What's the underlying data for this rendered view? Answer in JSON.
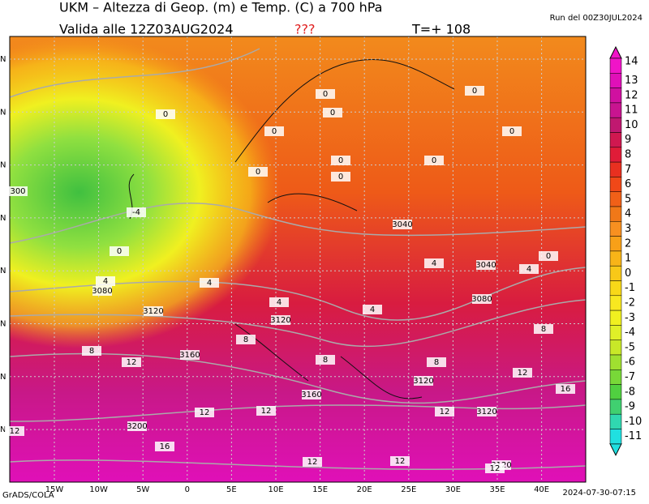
{
  "header": {
    "title": "UKM – Altezza di Geop. (m) e Temp. (C) a 700 hPa",
    "valid": "Valida alle 12Z03AUG2024",
    "flag": "???",
    "step": "T=+ 108",
    "run": "Run del 00Z30JUL2024"
  },
  "footer": {
    "left": "GrADS/COLA",
    "right": "2024-07-30-07:15"
  },
  "map": {
    "longitudes": [
      "15W",
      "10W",
      "5W",
      "0",
      "5E",
      "10E",
      "15E",
      "20E",
      "25E",
      "30E",
      "35E",
      "40E"
    ],
    "latitudes": [
      "N",
      "N",
      "N",
      "N",
      "N",
      "N",
      "N",
      "N"
    ],
    "contour_labels": [
      "0",
      "0",
      "0",
      "0",
      "0",
      "0",
      "0",
      "0",
      "0",
      "0",
      "0",
      "0",
      "300",
      "-4",
      "3040",
      "3040",
      "4",
      "4",
      "4",
      "4",
      "4",
      "4",
      "3080",
      "3080",
      "3120",
      "3120",
      "3120",
      "3120",
      "3120",
      "8",
      "8",
      "8",
      "8",
      "8",
      "3160",
      "3160",
      "12",
      "12",
      "12",
      "12",
      "12",
      "12",
      "12",
      "12",
      "12",
      "16",
      "16",
      "3200"
    ]
  },
  "colorbar": {
    "ticks": [
      14,
      13,
      12,
      11,
      10,
      9,
      8,
      7,
      6,
      5,
      4,
      3,
      2,
      1,
      0,
      -1,
      -2,
      -3,
      -4,
      -5,
      -6,
      -7,
      -8,
      -9,
      -10,
      -11
    ],
    "colors": [
      "#f014c8",
      "#e010b8",
      "#d010a0",
      "#c81490",
      "#c01870",
      "#d01850",
      "#e01c38",
      "#e83020",
      "#f04818",
      "#f06018",
      "#f07818",
      "#f89020",
      "#f8a018",
      "#f8b418",
      "#f8c818",
      "#f8d818",
      "#f8e820",
      "#f0f020",
      "#e0f028",
      "#c8e828",
      "#a0e030",
      "#78d838",
      "#50d040",
      "#40d070",
      "#30d8b0",
      "#20e0e0"
    ]
  }
}
